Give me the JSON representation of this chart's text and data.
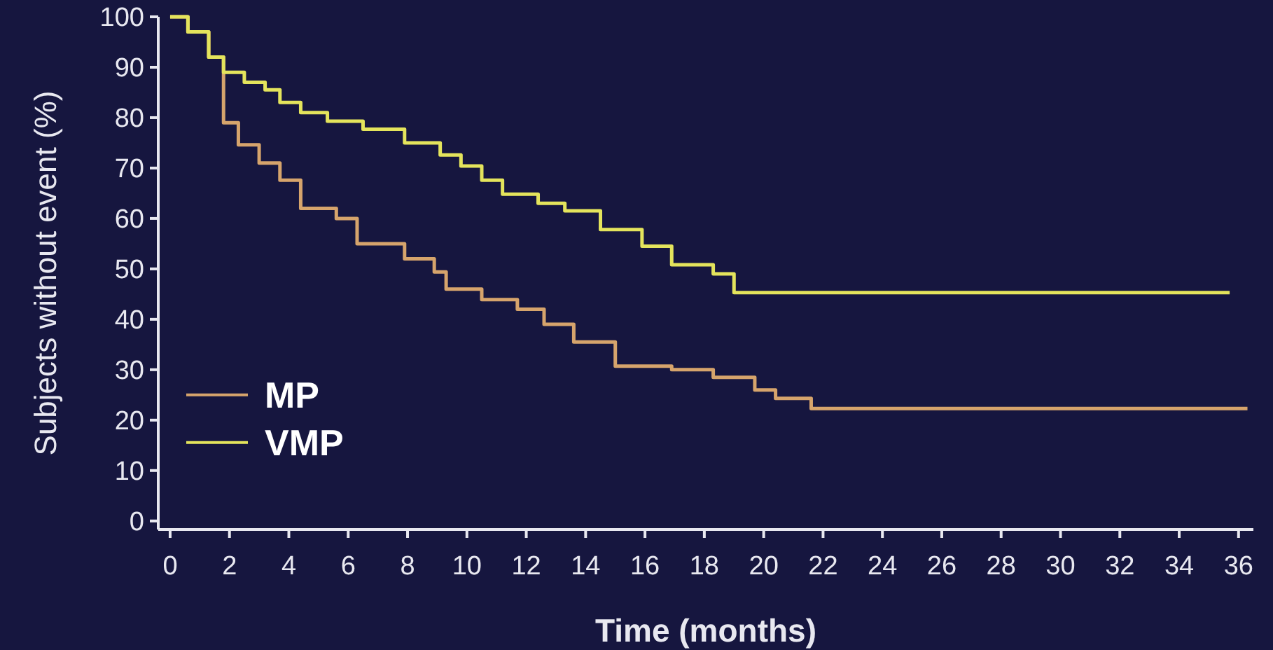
{
  "chart_data": {
    "type": "step",
    "xlabel": "Time (months)",
    "ylabel": "Subjects without event (%)",
    "xlim": [
      -0.4,
      36.5
    ],
    "ylim": [
      -1.7,
      100
    ],
    "xticks": [
      0,
      2,
      4,
      6,
      8,
      10,
      12,
      14,
      16,
      18,
      20,
      22,
      24,
      26,
      28,
      30,
      32,
      34,
      36
    ],
    "yticks": [
      0,
      10,
      20,
      30,
      40,
      50,
      60,
      70,
      80,
      90,
      100
    ],
    "grid": false,
    "legend": "bottom left",
    "series": [
      {
        "name": "MP",
        "color": "#d6a46c",
        "x": [
          0,
          0.6,
          1.3,
          1.8,
          2.3,
          3,
          3.7,
          4.4,
          5.6,
          6.3,
          7.9,
          8.9,
          9.3,
          10.5,
          11.7,
          12.6,
          13.6,
          15,
          16.9,
          18.3,
          19.7,
          20.4,
          21.6,
          36.3
        ],
        "values": [
          100,
          97,
          92,
          79,
          74.6,
          71,
          67.6,
          62,
          60,
          55,
          52,
          49.4,
          46,
          43.9,
          42,
          39,
          35.5,
          30.7,
          30,
          28.5,
          26,
          24.3,
          22.3,
          22.3
        ]
      },
      {
        "name": "VMP",
        "color": "#e4e45c",
        "x": [
          0,
          0.6,
          1.3,
          1.8,
          2.5,
          3.2,
          3.7,
          4.4,
          5.3,
          6.5,
          7.9,
          9.1,
          9.8,
          10.5,
          11.2,
          12.4,
          13.3,
          14.5,
          15.9,
          16.9,
          18.3,
          19,
          35.7
        ],
        "values": [
          100,
          97,
          92,
          89,
          87,
          85.5,
          83,
          81,
          79.3,
          77.7,
          75,
          72.6,
          70.4,
          67.6,
          64.8,
          63,
          61.5,
          57.8,
          54.5,
          50.8,
          49,
          45.3,
          45.3
        ]
      }
    ]
  }
}
